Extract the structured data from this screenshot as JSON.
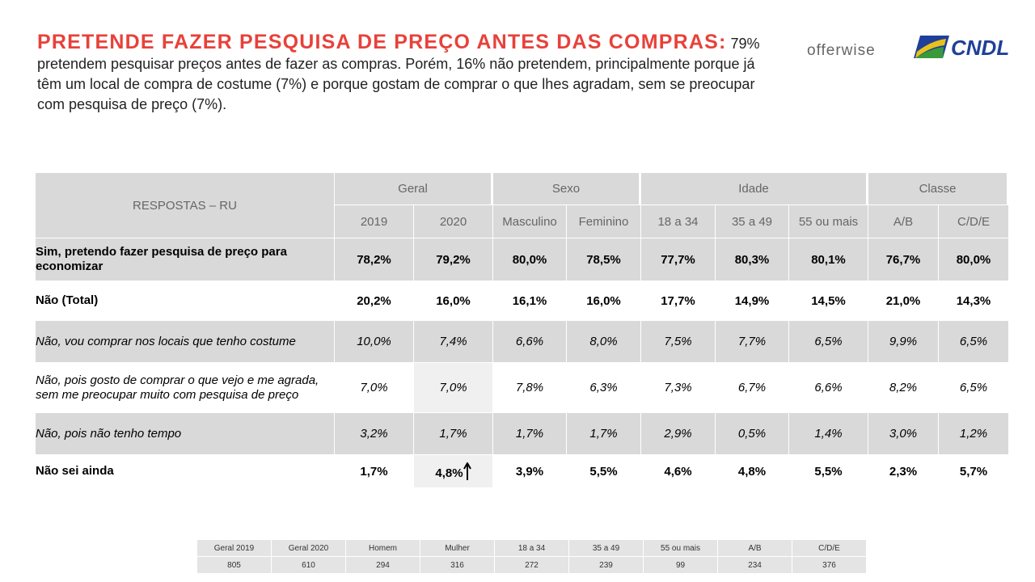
{
  "header": {
    "title": "PRETENDE FAZER PESQUISA DE PREÇO ANTES DAS COMPRAS:",
    "subtitle": "79% pretendem pesquisar preços antes de fazer as compras. Porém, 16% não pretendem, principalmente porque já têm um local de compra de costume (7%) e porque gostam de comprar o que lhes agradam, sem se preocupar com pesquisa de preço (7%).",
    "logos": [
      "offerwise",
      "CNDL"
    ]
  },
  "table": {
    "corner": "RESPOSTAS – RU",
    "groups": [
      {
        "label": "Geral",
        "span": 2
      },
      {
        "label": "Sexo",
        "span": 2
      },
      {
        "label": "Idade",
        "span": 3
      },
      {
        "label": "Classe",
        "span": 2
      }
    ],
    "columns": [
      "2019",
      "2020",
      "Masculino",
      "Feminino",
      "18 a 34",
      "35 a 49",
      "55 ou mais",
      "A/B",
      "C/D/E"
    ],
    "rows": [
      {
        "label": "Sim, pretendo fazer pesquisa de preço para economizar",
        "values": [
          "78,2%",
          "79,2%",
          "80,0%",
          "78,5%",
          "77,7%",
          "80,3%",
          "80,1%",
          "76,7%",
          "80,0%"
        ]
      },
      {
        "label": "Não (Total)",
        "values": [
          "20,2%",
          "16,0%",
          "16,1%",
          "16,0%",
          "17,7%",
          "14,9%",
          "14,5%",
          "21,0%",
          "14,3%"
        ]
      },
      {
        "label": "Não, vou comprar nos locais que tenho costume",
        "values": [
          "10,0%",
          "7,4%",
          "6,6%",
          "8,0%",
          "7,5%",
          "7,7%",
          "6,5%",
          "9,9%",
          "6,5%"
        ]
      },
      {
        "label": "Não, pois gosto de comprar o que vejo e me agrada, sem me preocupar muito com pesquisa de preço",
        "values": [
          "7,0%",
          "7,0%",
          "7,8%",
          "6,3%",
          "7,3%",
          "6,7%",
          "6,6%",
          "8,2%",
          "6,5%"
        ]
      },
      {
        "label": "Não, pois não tenho tempo",
        "values": [
          "3,2%",
          "1,7%",
          "1,7%",
          "1,7%",
          "2,9%",
          "0,5%",
          "1,4%",
          "3,0%",
          "1,2%"
        ]
      },
      {
        "label": "Não sei ainda",
        "values": [
          "1,7%",
          "4,8%",
          "3,9%",
          "5,5%",
          "4,6%",
          "4,8%",
          "5,5%",
          "2,3%",
          "5,7%"
        ]
      }
    ]
  },
  "sample": {
    "columns": [
      "Geral 2019",
      "Geral 2020",
      "Homem",
      "Mulher",
      "18 a 34",
      "35 a 49",
      "55 ou mais",
      "A/B",
      "C/D/E"
    ],
    "values": [
      805,
      610,
      294,
      316,
      272,
      239,
      99,
      234,
      376
    ]
  }
}
